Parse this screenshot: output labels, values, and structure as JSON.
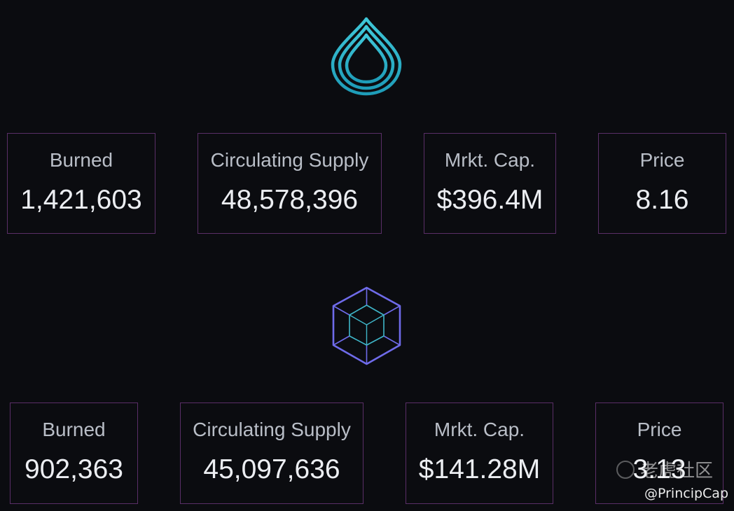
{
  "sections": [
    {
      "logo": "drop-logo-icon",
      "stats": [
        {
          "label": "Burned",
          "value": "1,421,603"
        },
        {
          "label": "Circulating Supply",
          "value": "48,578,396"
        },
        {
          "label": "Mrkt. Cap.",
          "value": "$396.4M"
        },
        {
          "label": "Price",
          "value": "8.16"
        }
      ]
    },
    {
      "logo": "cube-logo-icon",
      "stats": [
        {
          "label": "Burned",
          "value": "902,363"
        },
        {
          "label": "Circulating Supply",
          "value": "45,097,636"
        },
        {
          "label": "Mrkt. Cap.",
          "value": "$141.28M"
        },
        {
          "label": "Price",
          "value": "3.13"
        }
      ]
    }
  ],
  "watermark": {
    "community": "老虎社区",
    "handle": "@PrincipCap"
  },
  "colors": {
    "background": "#0b0c10",
    "card_border": "#5a2e67",
    "label": "#b9bec7",
    "value": "#eceef2",
    "drop_logo": "#2bb3c9",
    "cube_outer": "#6f6bea",
    "cube_inner": "#3fb6c9"
  }
}
